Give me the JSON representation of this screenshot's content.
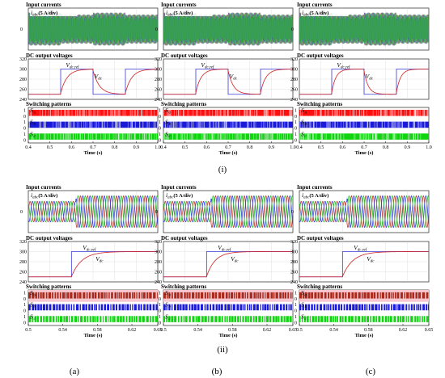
{
  "labels": {
    "input_currents": "Input currents",
    "dc_output_voltages": "DC output voltages",
    "switching_patterns": "Switching patterns",
    "time_axis": "Time (s)",
    "current_scale": "(5 A/div)",
    "current_symbol": "i",
    "current_sub": "abc",
    "vref_symbol": "V",
    "vref_sub": "dc,ref",
    "vdc_symbol": "V",
    "vdc_sub": "dc",
    "switch_symbol": "S",
    "current_zero_tick": "0"
  },
  "captions": {
    "row_i": "(i)",
    "row_ii": "(ii)",
    "col_a": "(a)",
    "col_b": "(b)",
    "col_c": "(c)"
  },
  "colors": {
    "phase_a": "#c0392b",
    "phase_b": "#2e3fe0",
    "phase_c": "#2bbf2b",
    "reference": "#3b3bdc",
    "vdc": "#d22020",
    "switch_a": "#ff1010",
    "switch_b": "#1a1adb",
    "switch_c": "#10d410",
    "switch_a_row2": "#a82a1a",
    "switch_band_a_row2": "#f7c6cf"
  },
  "chart_data": [
    {
      "id": "i-a",
      "type": "line",
      "x_range": [
        0.4,
        1.0
      ],
      "x_ticks": [
        "0.4",
        "0.5",
        "0.6",
        "0.7",
        "0.8",
        "0.9",
        "1.0"
      ],
      "voltage_ticks": [
        "320",
        "300",
        "280",
        "260",
        "240"
      ],
      "voltage_range": [
        240,
        320
      ],
      "switch_ticks": [
        "1",
        "0",
        "1",
        "0",
        "1",
        "0"
      ],
      "switch_labels": [
        "a",
        "b",
        "c"
      ],
      "reference_steps": [
        [
          0.4,
          250
        ],
        [
          0.55,
          300
        ],
        [
          0.7,
          250
        ],
        [
          0.85,
          300
        ],
        [
          1.0,
          300
        ]
      ],
      "vdc_tau": 0.03,
      "current_amplitude_profile": [
        [
          0.4,
          0.55,
          0.85
        ],
        [
          0.55,
          0.7,
          0.75
        ],
        [
          0.7,
          0.85,
          0.85
        ],
        [
          0.85,
          1.0,
          0.75
        ]
      ]
    },
    {
      "id": "i-b",
      "type": "line",
      "x_range": [
        0.4,
        1.0
      ],
      "x_ticks": [
        "0.4",
        "0.5",
        "0.6",
        "0.7",
        "0.8",
        "0.9",
        "1.0"
      ],
      "voltage_ticks": [
        "320",
        "300",
        "280",
        "260",
        "240"
      ],
      "voltage_range": [
        240,
        320
      ],
      "switch_ticks": [
        "1",
        "0",
        "1",
        "0",
        "1",
        "0"
      ],
      "switch_labels": [
        "a",
        "b",
        "c"
      ],
      "reference_steps": [
        [
          0.4,
          250
        ],
        [
          0.55,
          300
        ],
        [
          0.7,
          250
        ],
        [
          0.85,
          300
        ],
        [
          1.0,
          300
        ]
      ],
      "vdc_tau": 0.025,
      "current_amplitude_profile": [
        [
          0.4,
          0.55,
          0.85
        ],
        [
          0.55,
          0.7,
          0.75
        ],
        [
          0.7,
          0.85,
          0.85
        ],
        [
          0.85,
          1.0,
          0.75
        ]
      ]
    },
    {
      "id": "i-c",
      "type": "line",
      "x_range": [
        0.4,
        1.0
      ],
      "x_ticks": [
        "0.4",
        "0.5",
        "0.6",
        "0.7",
        "0.8",
        "0.9",
        "1.0"
      ],
      "voltage_ticks": [
        "320",
        "300",
        "280",
        "260",
        "240"
      ],
      "voltage_range": [
        240,
        320
      ],
      "switch_ticks": [
        "1",
        "0",
        "1",
        "0",
        "1",
        "0"
      ],
      "switch_labels": [
        "a",
        "b",
        "c"
      ],
      "reference_steps": [
        [
          0.4,
          250
        ],
        [
          0.55,
          300
        ],
        [
          0.7,
          250
        ],
        [
          0.85,
          300
        ],
        [
          1.0,
          300
        ]
      ],
      "vdc_tau": 0.02,
      "current_amplitude_profile": [
        [
          0.4,
          0.55,
          0.85
        ],
        [
          0.55,
          0.7,
          0.75
        ],
        [
          0.7,
          0.85,
          0.85
        ],
        [
          0.85,
          1.0,
          0.75
        ]
      ]
    },
    {
      "id": "ii-a",
      "type": "line",
      "x_range": [
        0.5,
        0.65
      ],
      "x_ticks": [
        "0.5",
        "0.54",
        "0.58",
        "0.62",
        "0.65"
      ],
      "x_tick_values": [
        0.5,
        0.54,
        0.58,
        0.62,
        0.65
      ],
      "voltage_ticks": [
        "320",
        "300",
        "280",
        "260",
        "240"
      ],
      "voltage_range": [
        240,
        320
      ],
      "switch_ticks": [
        "1",
        "0",
        "1",
        "0",
        "1",
        "0"
      ],
      "switch_labels": [
        "a",
        "b",
        "c"
      ],
      "reference_steps": [
        [
          0.5,
          250
        ],
        [
          0.55,
          300
        ],
        [
          0.65,
          300
        ]
      ],
      "vdc_tau": 0.012,
      "current_frequency": 50,
      "current_amplitude_profile": [
        [
          0.5,
          0.555,
          0.55
        ],
        [
          0.555,
          0.65,
          0.85
        ]
      ]
    },
    {
      "id": "ii-b",
      "type": "line",
      "x_range": [
        0.5,
        0.65
      ],
      "x_ticks": [
        "0.5",
        "0.54",
        "0.58",
        "0.62",
        "0.65"
      ],
      "x_tick_values": [
        0.5,
        0.54,
        0.58,
        0.62,
        0.65
      ],
      "voltage_ticks": [
        "320",
        "300",
        "280",
        "260",
        "240"
      ],
      "voltage_range": [
        240,
        320
      ],
      "switch_ticks": [
        "1",
        "0",
        "1",
        "0",
        "1",
        "0"
      ],
      "switch_labels": [
        "a",
        "b",
        "c"
      ],
      "reference_steps": [
        [
          0.5,
          250
        ],
        [
          0.55,
          300
        ],
        [
          0.65,
          300
        ]
      ],
      "vdc_tau": 0.01,
      "current_frequency": 50,
      "current_amplitude_profile": [
        [
          0.5,
          0.555,
          0.55
        ],
        [
          0.555,
          0.65,
          0.85
        ]
      ]
    },
    {
      "id": "ii-c",
      "type": "line",
      "x_range": [
        0.5,
        0.65
      ],
      "x_ticks": [
        "0.5",
        "0.54",
        "0.58",
        "0.62",
        "0.65"
      ],
      "x_tick_values": [
        0.5,
        0.54,
        0.58,
        0.62,
        0.65
      ],
      "voltage_ticks": [
        "320",
        "300",
        "280",
        "260",
        "240"
      ],
      "voltage_range": [
        240,
        320
      ],
      "switch_ticks": [
        "1",
        "0",
        "1",
        "0",
        "1",
        "0"
      ],
      "switch_labels": [
        "a",
        "b",
        "c"
      ],
      "reference_steps": [
        [
          0.5,
          250
        ],
        [
          0.55,
          300
        ],
        [
          0.65,
          300
        ]
      ],
      "vdc_tau": 0.012,
      "current_frequency": 50,
      "current_amplitude_profile": [
        [
          0.5,
          0.555,
          0.55
        ],
        [
          0.555,
          0.65,
          0.85
        ]
      ]
    }
  ]
}
